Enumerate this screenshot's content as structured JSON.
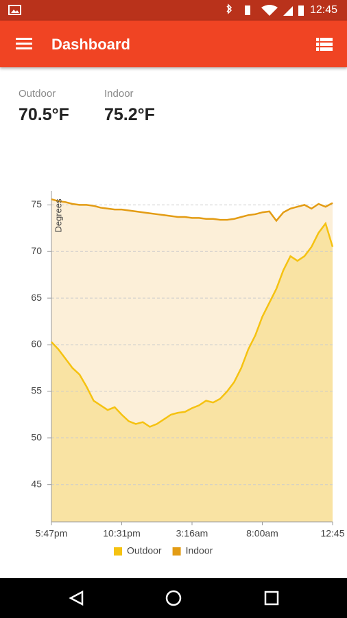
{
  "status_bar": {
    "time": "12:45"
  },
  "app_bar": {
    "title": "Dashboard"
  },
  "readings": [
    {
      "label": "Outdoor",
      "value": "70.5°F"
    },
    {
      "label": "Indoor",
      "value": "75.2°F"
    }
  ],
  "chart_data": {
    "type": "area",
    "ylabel": "Degrees",
    "categories": [
      "5:47pm",
      null,
      null,
      null,
      null,
      null,
      null,
      null,
      null,
      null,
      "10:31pm",
      null,
      null,
      null,
      null,
      null,
      null,
      null,
      null,
      null,
      "3:16am",
      null,
      null,
      null,
      null,
      null,
      null,
      null,
      null,
      null,
      "8:00am",
      null,
      null,
      null,
      null,
      null,
      null,
      null,
      null,
      null,
      "12:45"
    ],
    "series": [
      {
        "name": "Outdoor",
        "color": "#f5c211",
        "fill": "#f9e3a3",
        "values": [
          60.3,
          59.5,
          58.5,
          57.5,
          56.8,
          55.5,
          54,
          53.5,
          53,
          53.3,
          52.5,
          51.8,
          51.5,
          51.7,
          51.2,
          51.5,
          52,
          52.5,
          52.7,
          52.8,
          53.2,
          53.5,
          54,
          53.8,
          54.2,
          55,
          56,
          57.5,
          59.5,
          61,
          63,
          64.5,
          66,
          68,
          69.5,
          69,
          69.5,
          70.5,
          72,
          73,
          70.5
        ]
      },
      {
        "name": "Indoor",
        "color": "#e39c14",
        "fill": "#fcefd8",
        "values": [
          75.6,
          75.4,
          75.3,
          75.1,
          75,
          75,
          74.9,
          74.7,
          74.6,
          74.5,
          74.5,
          74.4,
          74.3,
          74.2,
          74.1,
          74,
          73.9,
          73.8,
          73.7,
          73.7,
          73.6,
          73.6,
          73.5,
          73.5,
          73.4,
          73.4,
          73.5,
          73.7,
          73.9,
          74,
          74.2,
          74.3,
          73.3,
          74.2,
          74.6,
          74.8,
          75,
          74.6,
          75.1,
          74.8,
          75.2
        ]
      }
    ],
    "ylim": [
      41,
      76.5
    ],
    "yticks": [
      45,
      50,
      55,
      60,
      65,
      70,
      75
    ],
    "grid": true,
    "legend": "bottom"
  }
}
